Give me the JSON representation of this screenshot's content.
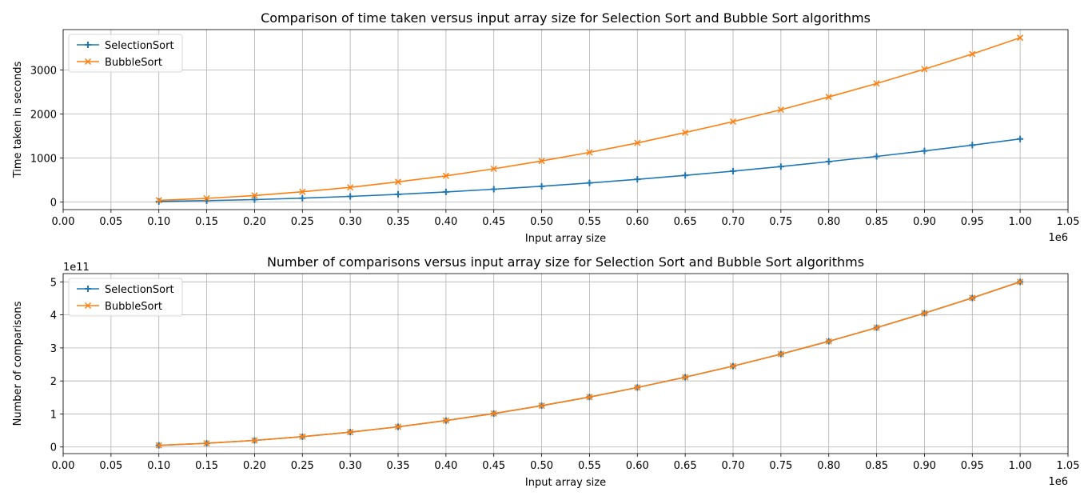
{
  "chart_data": [
    {
      "type": "line",
      "title": "Comparison of time taken versus input array size for Selection Sort and Bubble Sort algorithms",
      "xlabel": "Input array size",
      "ylabel": "Time taken in seconds",
      "x_offset_text": "1e6",
      "y_offset_text": "",
      "x_scale": 1000000,
      "y_scale": 1,
      "xlim": [
        0,
        1050000
      ],
      "ylim": [
        -170,
        3920
      ],
      "x_ticks": [
        0,
        50000,
        100000,
        150000,
        200000,
        250000,
        300000,
        350000,
        400000,
        450000,
        500000,
        550000,
        600000,
        650000,
        700000,
        750000,
        800000,
        850000,
        900000,
        950000,
        1000000,
        1050000
      ],
      "x_tick_labels": [
        "0.00",
        "0.05",
        "0.10",
        "0.15",
        "0.20",
        "0.25",
        "0.30",
        "0.35",
        "0.40",
        "0.45",
        "0.50",
        "0.55",
        "0.60",
        "0.65",
        "0.70",
        "0.75",
        "0.80",
        "0.85",
        "0.90",
        "0.95",
        "1.00",
        "1.05"
      ],
      "y_ticks": [
        0,
        1000,
        2000,
        3000
      ],
      "y_tick_labels": [
        "0",
        "1000",
        "2000",
        "3000"
      ],
      "grid": true,
      "legend_position": "top-left",
      "x": [
        100000,
        150000,
        200000,
        250000,
        300000,
        350000,
        400000,
        450000,
        500000,
        550000,
        600000,
        650000,
        700000,
        750000,
        800000,
        850000,
        900000,
        950000,
        1000000
      ],
      "series": [
        {
          "name": "SelectionSort",
          "color": "#1f77b4",
          "marker": "plus",
          "values": [
            15,
            33,
            58,
            90,
            130,
            177,
            232,
            293,
            360,
            436,
            518,
            608,
            705,
            808,
            920,
            1038,
            1163,
            1295,
            1435
          ]
        },
        {
          "name": "BubbleSort",
          "color": "#ff7f0e",
          "marker": "x",
          "values": [
            40,
            85,
            150,
            235,
            335,
            460,
            598,
            757,
            935,
            1130,
            1345,
            1580,
            1830,
            2100,
            2390,
            2695,
            3020,
            3365,
            3735
          ]
        }
      ]
    },
    {
      "type": "line",
      "title": "Number of comparisons versus input array size for Selection Sort and Bubble Sort algorithms",
      "xlabel": "Input array size",
      "ylabel": "Number of comparisons",
      "x_offset_text": "1e6",
      "y_offset_text": "1e11",
      "x_scale": 1000000,
      "y_scale": 100000000000,
      "xlim": [
        0,
        1050000
      ],
      "ylim": [
        -20000000000,
        525000000000
      ],
      "x_ticks": [
        0,
        50000,
        100000,
        150000,
        200000,
        250000,
        300000,
        350000,
        400000,
        450000,
        500000,
        550000,
        600000,
        650000,
        700000,
        750000,
        800000,
        850000,
        900000,
        950000,
        1000000,
        1050000
      ],
      "x_tick_labels": [
        "0.00",
        "0.05",
        "0.10",
        "0.15",
        "0.20",
        "0.25",
        "0.30",
        "0.35",
        "0.40",
        "0.45",
        "0.50",
        "0.55",
        "0.60",
        "0.65",
        "0.70",
        "0.75",
        "0.80",
        "0.85",
        "0.90",
        "0.95",
        "1.00",
        "1.05"
      ],
      "y_ticks": [
        0,
        100000000000,
        200000000000,
        300000000000,
        400000000000,
        500000000000
      ],
      "y_tick_labels": [
        "0",
        "1",
        "2",
        "3",
        "4",
        "5"
      ],
      "grid": true,
      "legend_position": "top-left",
      "x": [
        100000,
        150000,
        200000,
        250000,
        300000,
        350000,
        400000,
        450000,
        500000,
        550000,
        600000,
        650000,
        700000,
        750000,
        800000,
        850000,
        900000,
        950000,
        1000000
      ],
      "series": [
        {
          "name": "SelectionSort",
          "color": "#1f77b4",
          "marker": "plus",
          "values": [
            5000000000,
            11250000000,
            20000000000,
            31250000000,
            45000000000,
            61250000000,
            80000000000,
            101250000000,
            125000000000,
            151250000000,
            180000000000,
            211250000000,
            245000000000,
            281250000000,
            320000000000,
            361250000000,
            405000000000,
            451250000000,
            500000000000
          ]
        },
        {
          "name": "BubbleSort",
          "color": "#ff7f0e",
          "marker": "x",
          "values": [
            5000000000,
            11250000000,
            20000000000,
            31250000000,
            45000000000,
            61250000000,
            80000000000,
            101250000000,
            125000000000,
            151250000000,
            180000000000,
            211250000000,
            245000000000,
            281250000000,
            320000000000,
            361250000000,
            405000000000,
            451250000000,
            500000000000
          ]
        }
      ]
    }
  ]
}
